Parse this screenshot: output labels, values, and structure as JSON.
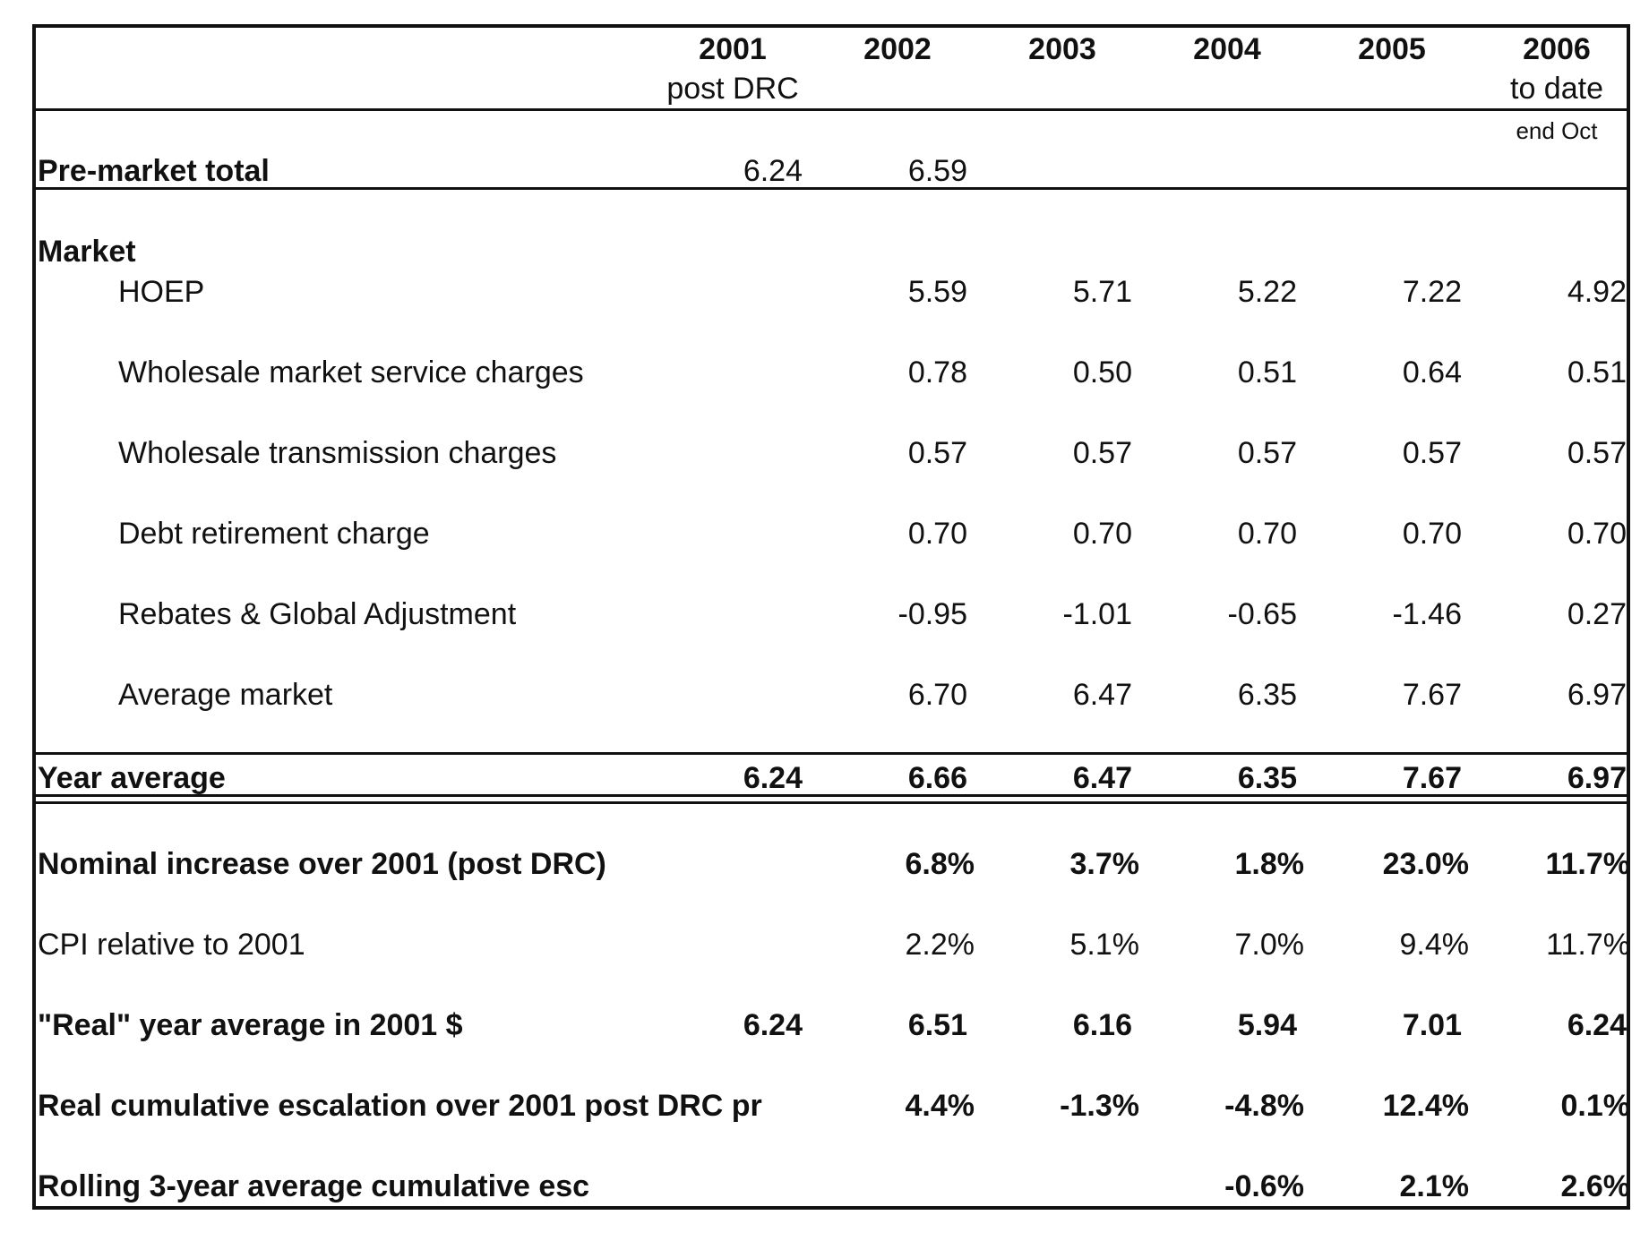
{
  "header": {
    "years": [
      {
        "year": "2001",
        "sub": "post DRC"
      },
      {
        "year": "2002",
        "sub": ""
      },
      {
        "year": "2003",
        "sub": ""
      },
      {
        "year": "2004",
        "sub": ""
      },
      {
        "year": "2005",
        "sub": ""
      },
      {
        "year": "2006",
        "sub": "to date"
      }
    ],
    "note": "end Oct"
  },
  "pre_market": {
    "label": "Pre-market total",
    "values": [
      "6.24",
      "6.59"
    ]
  },
  "market": {
    "label": "Market",
    "rows": [
      {
        "label": "HOEP",
        "values": [
          "",
          "5.59",
          "5.71",
          "5.22",
          "7.22",
          "4.92"
        ]
      },
      {
        "label": "Wholesale market service charges",
        "values": [
          "",
          "0.78",
          "0.50",
          "0.51",
          "0.64",
          "0.51"
        ]
      },
      {
        "label": "Wholesale transmission charges",
        "values": [
          "",
          "0.57",
          "0.57",
          "0.57",
          "0.57",
          "0.57"
        ]
      },
      {
        "label": "Debt retirement charge",
        "values": [
          "",
          "0.70",
          "0.70",
          "0.70",
          "0.70",
          "0.70"
        ]
      },
      {
        "label": "Rebates & Global Adjustment",
        "values": [
          "",
          "-0.95",
          "-1.01",
          "-0.65",
          "-1.46",
          "0.27"
        ]
      },
      {
        "label": "Average market",
        "values": [
          "",
          "6.70",
          "6.47",
          "6.35",
          "7.67",
          "6.97"
        ]
      }
    ]
  },
  "year_average": {
    "label": "Year average",
    "values": [
      "6.24",
      "6.66",
      "6.47",
      "6.35",
      "7.67",
      "6.97"
    ]
  },
  "bottom_rows": [
    {
      "label": "Nominal increase over 2001 (post DRC)",
      "bold": true,
      "pct": true,
      "values": [
        "",
        "6.8%",
        "3.7%",
        "1.8%",
        "23.0%",
        "11.7%"
      ]
    },
    {
      "label": "CPI relative to 2001",
      "bold": false,
      "pct": true,
      "values": [
        "",
        "2.2%",
        "5.1%",
        "7.0%",
        "9.4%",
        "11.7%"
      ]
    },
    {
      "label": "\"Real\" year average in 2001 $",
      "bold": true,
      "pct": false,
      "values": [
        "6.24",
        "6.51",
        "6.16",
        "5.94",
        "7.01",
        "6.24"
      ]
    },
    {
      "label": "Real cumulative escalation over 2001 post DRC pr",
      "bold": true,
      "pct": true,
      "values": [
        "",
        "4.4%",
        "-1.3%",
        "-4.8%",
        "12.4%",
        "0.1%"
      ]
    },
    {
      "label": "Rolling 3-year average cumulative esc",
      "bold": true,
      "pct": true,
      "values": [
        "",
        "",
        "",
        "-0.6%",
        "2.1%",
        "2.6%"
      ]
    }
  ]
}
